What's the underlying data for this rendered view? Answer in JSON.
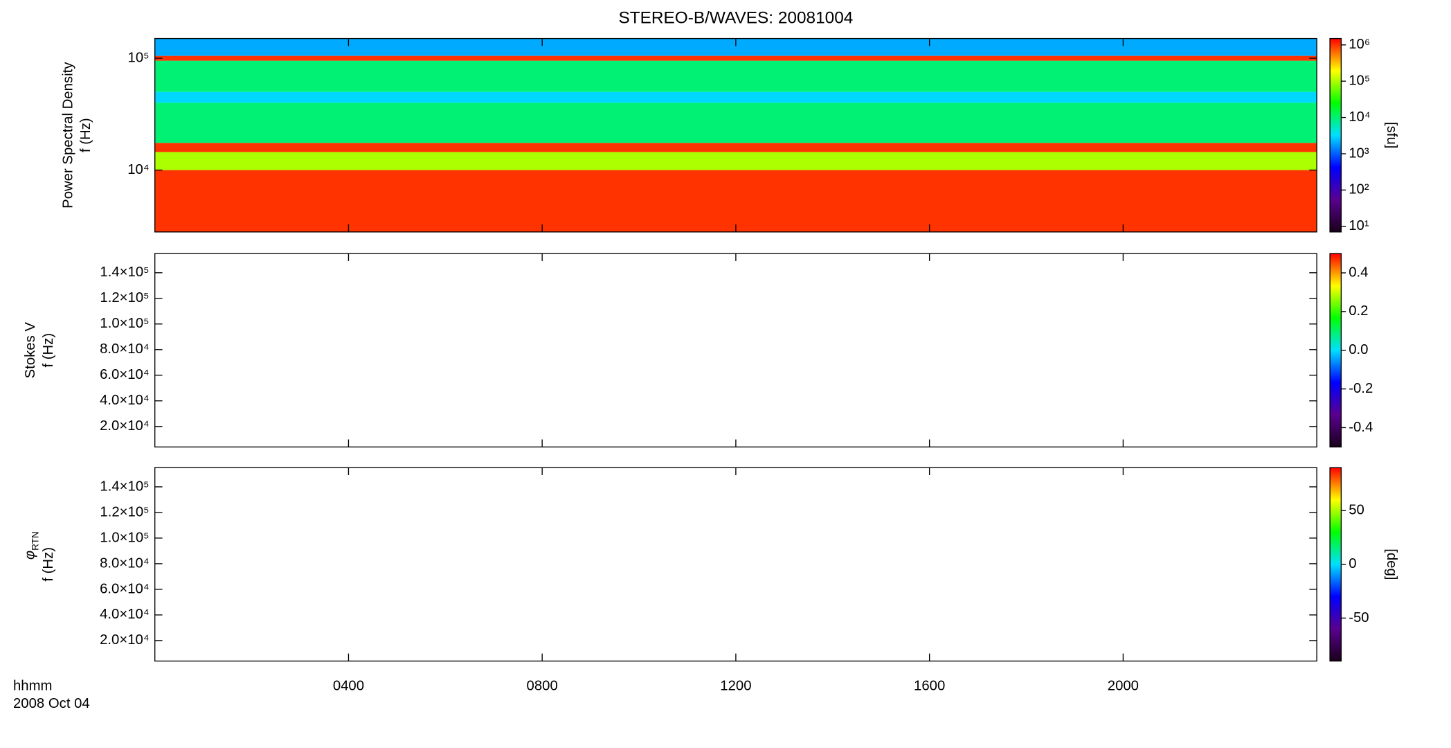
{
  "chart_data": [
    {
      "type": "heatmap",
      "title": "STEREO-B/WAVES: 20081004",
      "ylabel_top": "Power Spectral Density",
      "ylabel": "f (Hz)",
      "ylog": true,
      "ylim": [
        2800,
        150000
      ],
      "yticks": [
        {
          "value": 10000,
          "label": "10⁴"
        },
        {
          "value": 100000,
          "label": "10⁵"
        }
      ],
      "xlim": [
        0,
        24
      ],
      "colormap": [
        "#1a001a",
        "#5a0090",
        "#0000ff",
        "#00e0ff",
        "#00ff00",
        "#ffff00",
        "#ff0000"
      ],
      "colorbar": {
        "log": true,
        "lim": [
          7,
          1500000
        ],
        "label": "[sfu]",
        "ticks": [
          {
            "value": 10,
            "label": "10¹"
          },
          {
            "value": 100,
            "label": "10²"
          },
          {
            "value": 1000,
            "label": "10³"
          },
          {
            "value": 10000,
            "label": "10⁴"
          },
          {
            "value": 100000,
            "label": "10⁵"
          },
          {
            "value": 1000000,
            "label": "10⁶"
          }
        ]
      },
      "bands": [
        {
          "range": [
            2800,
            10000
          ],
          "value": 1000000
        },
        {
          "range": [
            10000,
            14500
          ],
          "value": 100000
        },
        {
          "range": [
            14500,
            17500
          ],
          "value": 1000000
        },
        {
          "range": [
            17500,
            40000
          ],
          "value": 10000
        },
        {
          "range": [
            40000,
            50000
          ],
          "value": 3000
        },
        {
          "range": [
            50000,
            95000
          ],
          "value": 10000
        },
        {
          "range": [
            95000,
            105000
          ],
          "value": 1000000
        },
        {
          "range": [
            105000,
            150000
          ],
          "value": 2000
        }
      ]
    },
    {
      "type": "heatmap",
      "ylabel_top": "Stokes V",
      "ylabel": "f (Hz)",
      "ylog": false,
      "ylim": [
        4000,
        155000
      ],
      "yticks": [
        {
          "value": 20000,
          "label": "2.0×10⁴"
        },
        {
          "value": 40000,
          "label": "4.0×10⁴"
        },
        {
          "value": 60000,
          "label": "6.0×10⁴"
        },
        {
          "value": 80000,
          "label": "8.0×10⁴"
        },
        {
          "value": 100000,
          "label": "1.0×10⁵"
        },
        {
          "value": 120000,
          "label": "1.2×10⁵"
        },
        {
          "value": 140000,
          "label": "1.4×10⁵"
        }
      ],
      "xlim": [
        0,
        24
      ],
      "colorbar": {
        "log": false,
        "lim": [
          -0.5,
          0.5
        ],
        "ticks": [
          -0.4,
          -0.2,
          {
            "value": 0,
            "label": "0.0"
          },
          0.2,
          0.4
        ]
      }
    },
    {
      "type": "heatmap",
      "ylabel_symbol": "φ",
      "ylabel_subscript": "RTN",
      "ylabel": "f (Hz)",
      "ylog": false,
      "ylim": [
        4000,
        155000
      ],
      "yticks": [
        {
          "value": 20000,
          "label": "2.0×10⁴"
        },
        {
          "value": 40000,
          "label": "4.0×10⁴"
        },
        {
          "value": 60000,
          "label": "6.0×10⁴"
        },
        {
          "value": 80000,
          "label": "8.0×10⁴"
        },
        {
          "value": 100000,
          "label": "1.0×10⁵"
        },
        {
          "value": 120000,
          "label": "1.2×10⁵"
        },
        {
          "value": 140000,
          "label": "1.4×10⁵"
        }
      ],
      "xlim": [
        0,
        24
      ],
      "xticks": [
        {
          "value": 4,
          "label": "0400"
        },
        {
          "value": 8,
          "label": "0800"
        },
        {
          "value": 12,
          "label": "1200"
        },
        {
          "value": 16,
          "label": "1600"
        },
        {
          "value": 20,
          "label": "2000"
        }
      ],
      "xlabel": "hhmm",
      "date": "2008 Oct 04",
      "colorbar": {
        "log": false,
        "lim": [
          -90,
          90
        ],
        "label": "[deg]",
        "ticks": [
          -50,
          0,
          50
        ]
      }
    }
  ]
}
